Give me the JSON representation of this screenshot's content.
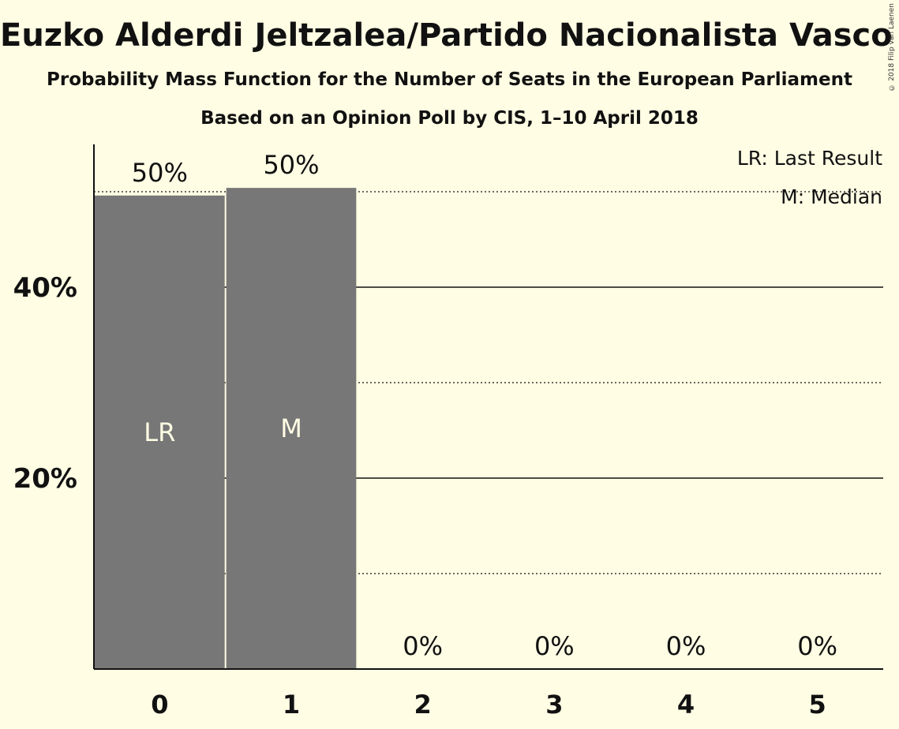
{
  "title": "Euzko Alderdi Jeltzalea/Partido Nacionalista Vasco (ALDE)",
  "subtitle": "Probability Mass Function for the Number of Seats in the European Parliament",
  "subtitle2": "Based on an Opinion Poll by CIS, 1–10 April 2018",
  "copyright": "© 2018 Filip van Laenen",
  "legend": {
    "lr": "LR: Last Result",
    "m": "M: Median"
  },
  "colors": {
    "background": "#FFFDE4",
    "bar": "#777777",
    "text": "#111111"
  },
  "chart_data": {
    "type": "bar",
    "categories": [
      "0",
      "1",
      "2",
      "3",
      "4",
      "5"
    ],
    "values": [
      49.6,
      50.4,
      0,
      0,
      0,
      0
    ],
    "value_labels": [
      "50%",
      "50%",
      "0%",
      "0%",
      "0%",
      "0%"
    ],
    "bar_labels": [
      "LR",
      "M",
      "",
      "",
      "",
      ""
    ],
    "yticks": [
      {
        "value": 20,
        "label": "20%"
      },
      {
        "value": 40,
        "label": "40%"
      }
    ],
    "minor_gridlines": [
      10,
      30,
      50
    ],
    "ylim": [
      0,
      55
    ],
    "legend_position": "top-right"
  }
}
